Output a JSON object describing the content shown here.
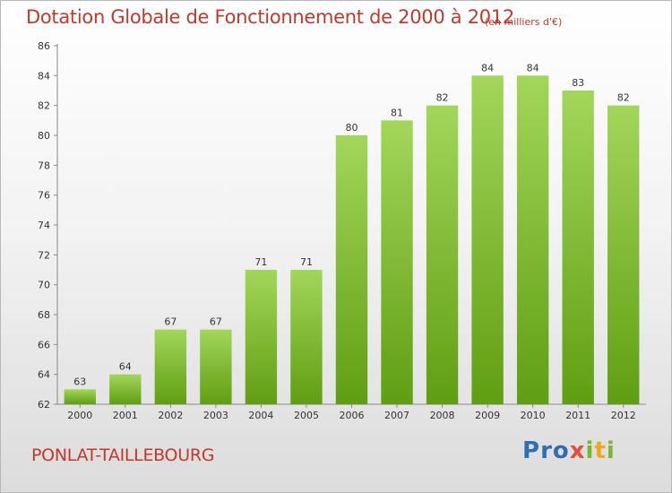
{
  "header": {
    "title": "Dotation Globale de Fonctionnement de 2000 à 2012",
    "unit": "(en milliers d'€)"
  },
  "footer": {
    "town": "PONLAT-TAILLEBOURG",
    "logo_letters": [
      "P",
      "r",
      "o",
      "x",
      "i",
      "t",
      "i"
    ]
  },
  "colors": {
    "bar_light": "#a3d65a",
    "bar_dark": "#5f9e12",
    "text_red": "#c0392b",
    "logo": [
      "#2f6db5",
      "#2f6db5",
      "#2f6db5",
      "#e94b3c",
      "#7ab72e",
      "#f2a71b",
      "#7ab72e"
    ]
  },
  "chart_data": {
    "type": "bar",
    "title": "Dotation Globale de Fonctionnement de 2000 à 2012",
    "xlabel": "",
    "ylabel": "",
    "categories": [
      "2000",
      "2001",
      "2002",
      "2003",
      "2004",
      "2005",
      "2006",
      "2007",
      "2008",
      "2009",
      "2010",
      "2011",
      "2012"
    ],
    "values": [
      63,
      64,
      67,
      67,
      71,
      71,
      80,
      81,
      82,
      84,
      84,
      83,
      82
    ],
    "ylim": [
      62,
      86
    ],
    "yticks": [
      62,
      64,
      66,
      68,
      70,
      72,
      74,
      76,
      78,
      80,
      82,
      84,
      86
    ],
    "grid": false,
    "legend": "none"
  }
}
